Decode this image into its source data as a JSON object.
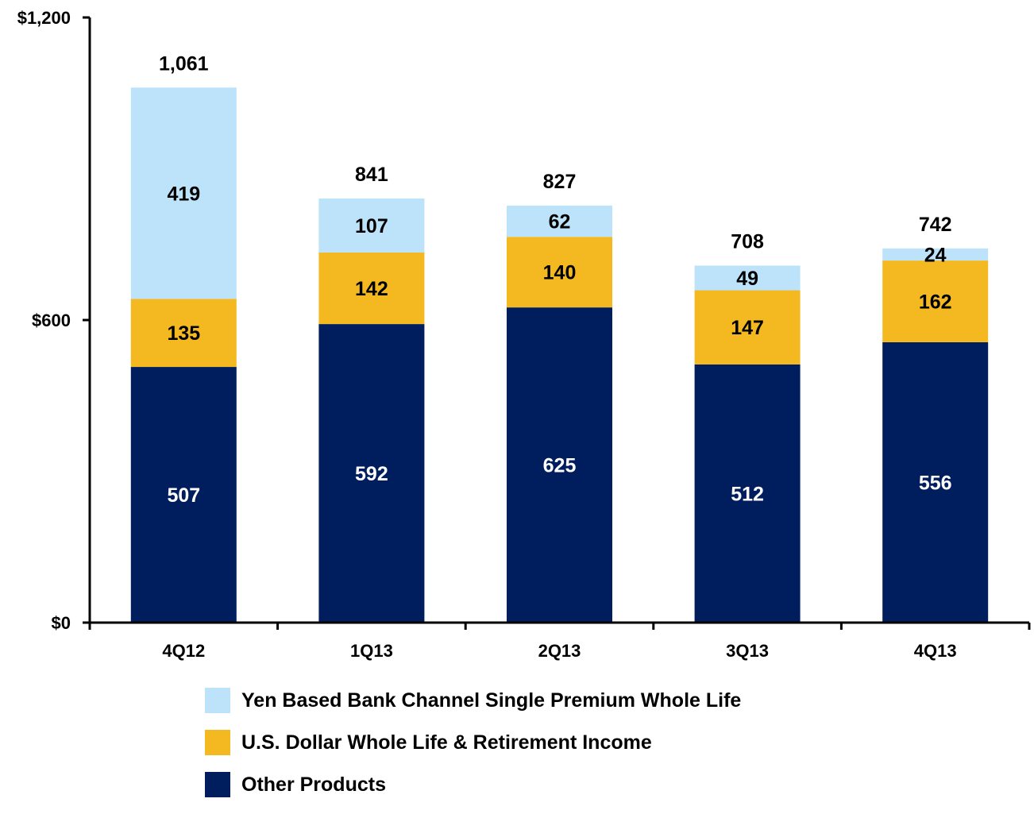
{
  "chart_data": {
    "type": "bar",
    "stacked": true,
    "categories": [
      "4Q12",
      "1Q13",
      "2Q13",
      "3Q13",
      "4Q13"
    ],
    "series": [
      {
        "name": "Other Products",
        "color": "#001E5E",
        "values": [
          507,
          592,
          625,
          512,
          556
        ],
        "label_color": "#ffffff"
      },
      {
        "name": "U.S. Dollar Whole Life & Retirement Income",
        "color": "#F4B921",
        "values": [
          135,
          142,
          140,
          147,
          162
        ],
        "label_color": "#000000"
      },
      {
        "name": "Yen Based Bank Channel Single Premium Whole Life",
        "color": "#BCE3FA",
        "values": [
          419,
          107,
          62,
          49,
          24
        ],
        "label_color": "#000000"
      }
    ],
    "totals": [
      "1,061",
      "841",
      "827",
      "708",
      "742"
    ],
    "ylim": [
      0,
      1200
    ],
    "yticks": [
      {
        "value": 0,
        "label": "$0"
      },
      {
        "value": 600,
        "label": "$600"
      },
      {
        "value": 1200,
        "label": "$1,200"
      }
    ],
    "grid": false,
    "legend_position": "bottom"
  }
}
